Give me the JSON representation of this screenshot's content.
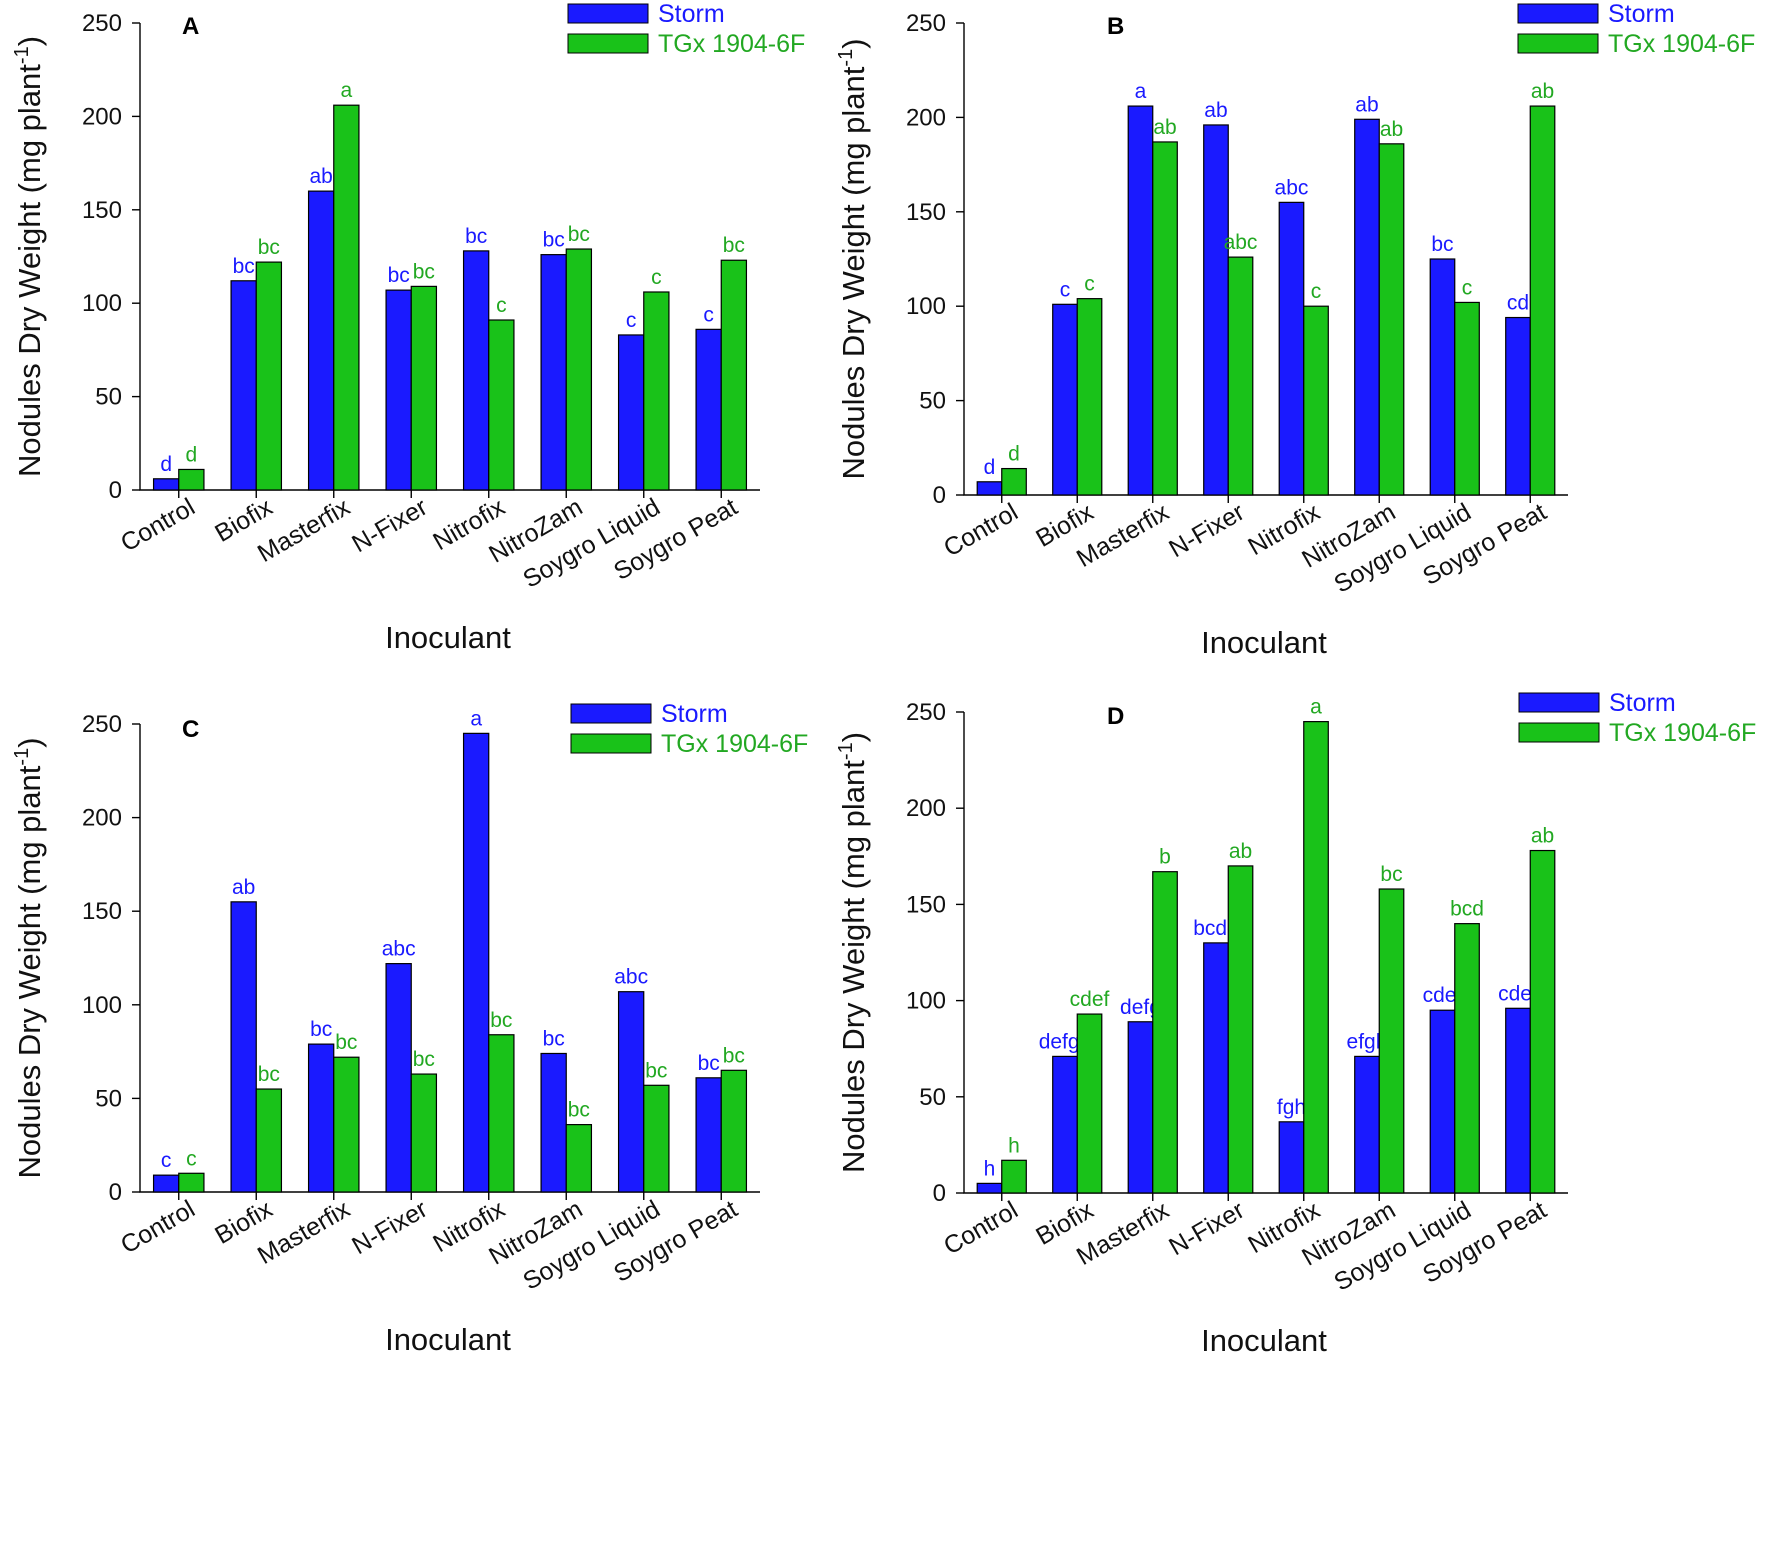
{
  "colors": {
    "storm": "#1a1aff",
    "tgx": "#19c219",
    "storm_text": "#1a1aff",
    "tgx_text": "#22a822"
  },
  "legend": {
    "series_1": "Storm",
    "series_2": "TGx 1904-6F"
  },
  "ylabel_main": "Nodules Dry Weight (mg plant",
  "ylabel_sup": "-1",
  "ylabel_close": ")",
  "chart_data": [
    {
      "type": "bar",
      "panel": "A",
      "xlabel": "Inoculant",
      "ylabel": "Nodules Dry Weight (mg plant-1)",
      "ylim": [
        0,
        250
      ],
      "yticks": [
        0,
        50,
        100,
        150,
        200,
        250
      ],
      "legend_position": "top-right",
      "categories": [
        "Control",
        "Biofix",
        "Masterfix",
        "N-Fixer",
        "Nitrofix",
        "NitroZam",
        "Soygro Liquid",
        "Soygro Peat"
      ],
      "series": [
        {
          "name": "Storm",
          "values": [
            6,
            112,
            160,
            107,
            128,
            126,
            83,
            86
          ],
          "labels": [
            "d",
            "bc",
            "ab",
            "bc",
            "bc",
            "bc",
            "c",
            "c"
          ]
        },
        {
          "name": "TGx 1904-6F",
          "values": [
            11,
            122,
            206,
            109,
            91,
            129,
            106,
            123
          ],
          "labels": [
            "d",
            "bc",
            "a",
            "bc",
            "c",
            "bc",
            "c",
            "bc"
          ]
        }
      ]
    },
    {
      "type": "bar",
      "panel": "B",
      "xlabel": "Inoculant",
      "ylabel": "Nodules Dry Weight (mg plant-1)",
      "ylim": [
        0,
        250
      ],
      "yticks": [
        0,
        50,
        100,
        150,
        200,
        250
      ],
      "legend_position": "top-right",
      "categories": [
        "Control",
        "Biofix",
        "Masterfix",
        "N-Fixer",
        "Nitrofix",
        "NitroZam",
        "Soygro Liquid",
        "Soygro Peat"
      ],
      "series": [
        {
          "name": "Storm",
          "values": [
            7,
            101,
            206,
            196,
            155,
            199,
            125,
            94
          ],
          "labels": [
            "d",
            "c",
            "a",
            "ab",
            "abc",
            "ab",
            "bc",
            "cd"
          ]
        },
        {
          "name": "TGx 1904-6F",
          "values": [
            14,
            104,
            187,
            126,
            100,
            186,
            102,
            206
          ],
          "labels": [
            "d",
            "c",
            "ab",
            "abc",
            "c",
            "ab",
            "c",
            "ab"
          ]
        }
      ]
    },
    {
      "type": "bar",
      "panel": "C",
      "xlabel": "Inoculant",
      "ylabel": "Nodules Dry Weight (mg plant-1)",
      "ylim": [
        0,
        250
      ],
      "yticks": [
        0,
        50,
        100,
        150,
        200,
        250
      ],
      "legend_position": "top-right",
      "categories": [
        "Control",
        "Biofix",
        "Masterfix",
        "N-Fixer",
        "Nitrofix",
        "NitroZam",
        "Soygro Liquid",
        "Soygro Peat"
      ],
      "series": [
        {
          "name": "Storm",
          "values": [
            9,
            155,
            79,
            122,
            245,
            74,
            107,
            61
          ],
          "labels": [
            "c",
            "ab",
            "bc",
            "abc",
            "a",
            "bc",
            "abc",
            "bc"
          ]
        },
        {
          "name": "TGx 1904-6F",
          "values": [
            10,
            55,
            72,
            63,
            84,
            36,
            57,
            65
          ],
          "labels": [
            "c",
            "bc",
            "bc",
            "bc",
            "bc",
            "bc",
            "bc",
            "bc"
          ]
        }
      ]
    },
    {
      "type": "bar",
      "panel": "D",
      "xlabel": "Inoculant",
      "ylabel": "Nodules Dry Weight (mg plant-1)",
      "ylim": [
        0,
        250
      ],
      "yticks": [
        0,
        50,
        100,
        150,
        200,
        250
      ],
      "legend_position": "top-right",
      "categories": [
        "Control",
        "Biofix",
        "Masterfix",
        "N-Fixer",
        "Nitrofix",
        "NitroZam",
        "Soygro Liquid",
        "Soygro Peat"
      ],
      "series": [
        {
          "name": "Storm",
          "values": [
            5,
            71,
            89,
            130,
            37,
            71,
            95,
            96
          ],
          "labels": [
            "h",
            "defgh",
            "defg",
            "bcde",
            "fgh",
            "efgh",
            "cdef",
            "cdef"
          ]
        },
        {
          "name": "TGx 1904-6F",
          "values": [
            17,
            93,
            167,
            170,
            245,
            158,
            140,
            178
          ],
          "labels": [
            "h",
            "cdef",
            "b",
            "ab",
            "a",
            "bc",
            "bcd",
            "ab"
          ]
        }
      ]
    }
  ]
}
